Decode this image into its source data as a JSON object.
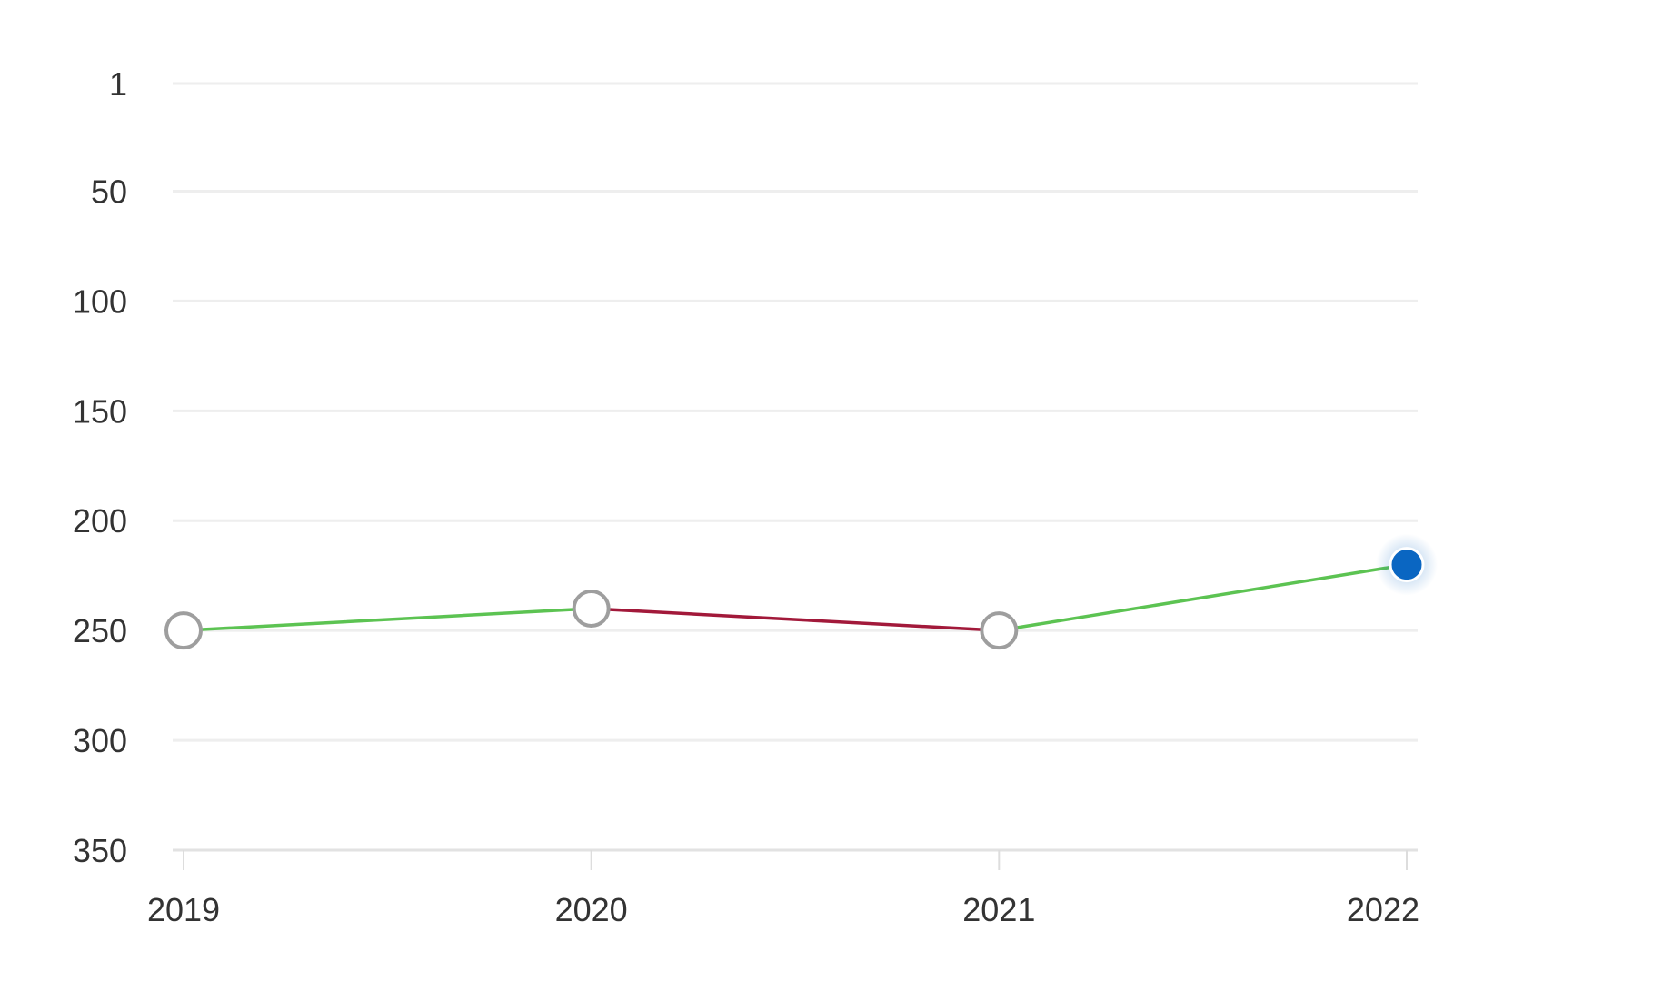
{
  "chart_data": {
    "type": "line",
    "x": [
      "2019",
      "2020",
      "2021",
      "2022"
    ],
    "values": [
      250,
      240,
      250,
      220
    ],
    "y_reversed": true,
    "ylim": [
      1,
      350
    ],
    "yticks": [
      1,
      50,
      100,
      150,
      200,
      250,
      300,
      350
    ],
    "ytick_labels": [
      "1",
      "50",
      "100",
      "150",
      "200",
      "250",
      "300",
      "350"
    ],
    "xtick_labels": [
      "2019",
      "2020",
      "2021",
      "2022"
    ],
    "grid": true,
    "legend": "none",
    "highlighted_point": "2022"
  },
  "colors": {
    "improving": "#5cc352",
    "declining": "#a2193a",
    "current_point": "#0a66c2",
    "gridline": "#eeeeee",
    "point_outline": "#9e9e9e",
    "text": "#333333"
  }
}
